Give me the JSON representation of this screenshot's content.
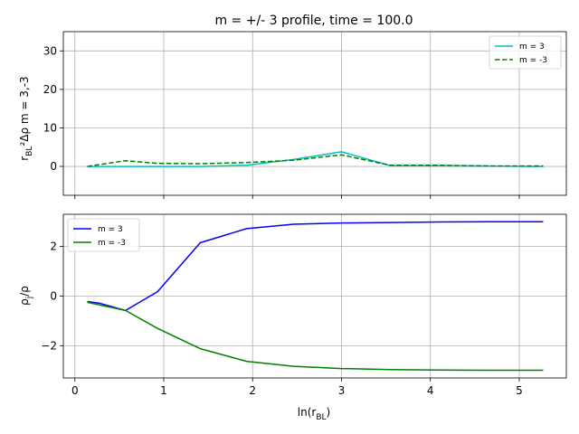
{
  "chart_data": [
    {
      "type": "line",
      "title": "m = +/- 3 profile, time = 100.0",
      "xlabel": "",
      "ylabel_main": "r",
      "ylabel_sub": "BL",
      "ylabel_rest": "²Δρ   m = 3,-3",
      "xlim": [
        -0.13,
        5.53
      ],
      "ylim": [
        -7.5,
        35
      ],
      "x_ticks": [],
      "y_ticks": [
        0,
        10,
        20,
        30
      ],
      "y_tick_labels": [
        "0",
        "10",
        "20",
        "30"
      ],
      "grid": true,
      "legend_position": "upper right",
      "series": [
        {
          "name": "m = 3",
          "color": "#00bfbf",
          "dash": "solid",
          "x": [
            0.14,
            0.57,
            0.93,
            1.41,
            1.93,
            2.46,
            3.0,
            3.55,
            4.1,
            4.68,
            5.27
          ],
          "y": [
            0.0,
            0.0,
            0.0,
            0.0,
            0.3,
            1.8,
            3.8,
            0.2,
            0.2,
            0.1,
            0.0
          ]
        },
        {
          "name": "m = -3",
          "color": "#008000",
          "dash": "dashed",
          "x": [
            0.14,
            0.57,
            0.93,
            1.41,
            1.93,
            2.46,
            3.0,
            3.55,
            4.1,
            4.68,
            5.27
          ],
          "y": [
            0.0,
            1.5,
            0.8,
            0.7,
            1.0,
            1.6,
            3.0,
            0.3,
            0.3,
            0.1,
            0.1
          ]
        }
      ]
    },
    {
      "type": "line",
      "title": "",
      "xlabel_main": "ln(r",
      "xlabel_sub": "BL",
      "xlabel_end": ")",
      "ylabel_main": "ρ",
      "ylabel_sub": "j",
      "ylabel_rest": "/ρ",
      "xlim": [
        -0.13,
        5.53
      ],
      "ylim": [
        -3.3,
        3.3
      ],
      "x_ticks": [
        0,
        1,
        2,
        3,
        4,
        5
      ],
      "x_tick_labels": [
        "0",
        "1",
        "2",
        "3",
        "4",
        "5"
      ],
      "y_ticks": [
        -2,
        0,
        2
      ],
      "y_tick_labels": [
        "−2",
        "0",
        "2"
      ],
      "grid": true,
      "legend_position": "upper left",
      "series": [
        {
          "name": "m = 3",
          "color": "#0000ff",
          "dash": "solid",
          "x": [
            0.14,
            0.27,
            0.57,
            0.93,
            1.41,
            1.93,
            2.46,
            3.0,
            3.55,
            4.1,
            4.68,
            5.27
          ],
          "y": [
            -0.22,
            -0.28,
            -0.58,
            0.18,
            2.15,
            2.72,
            2.9,
            2.95,
            2.97,
            2.99,
            3.0,
            3.0
          ]
        },
        {
          "name": "m = -3",
          "color": "#008000",
          "dash": "solid",
          "x": [
            0.14,
            0.57,
            0.93,
            1.41,
            1.93,
            2.46,
            3.0,
            3.55,
            4.1,
            4.68,
            5.27
          ],
          "y": [
            -0.25,
            -0.58,
            -1.3,
            -2.12,
            -2.63,
            -2.83,
            -2.92,
            -2.96,
            -2.98,
            -2.99,
            -2.99
          ]
        }
      ]
    }
  ]
}
